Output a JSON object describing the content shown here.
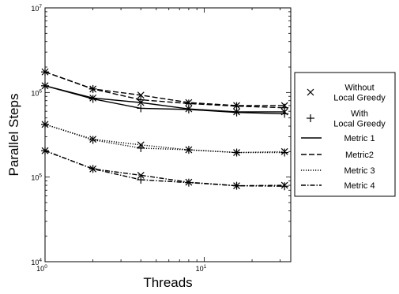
{
  "chart_data": {
    "type": "line",
    "xlabel": "Threads",
    "ylabel": "Parallel Steps",
    "x_scale": "log",
    "y_scale": "log",
    "xlim": [
      1,
      35
    ],
    "ylim": [
      10000,
      10000000
    ],
    "x_ticks": [
      {
        "value": 1,
        "label": "10",
        "exp": "0"
      },
      {
        "value": 10,
        "label": "10",
        "exp": "1"
      }
    ],
    "y_ticks": [
      {
        "value": 10000,
        "label": "10",
        "exp": "4"
      },
      {
        "value": 100000,
        "label": "10",
        "exp": "5"
      },
      {
        "value": 1000000,
        "label": "10",
        "exp": "6"
      },
      {
        "value": 10000000,
        "label": "10",
        "exp": "7"
      }
    ],
    "grid": false,
    "legend_position": "right",
    "x": [
      1,
      2,
      4,
      8,
      16,
      32
    ],
    "series": [
      {
        "name": "Metric 1",
        "dash": "solid",
        "variant": "without",
        "values": [
          1200000,
          860000,
          760000,
          640000,
          590000,
          590000
        ]
      },
      {
        "name": "Metric 1",
        "dash": "solid",
        "variant": "with",
        "values": [
          1200000,
          840000,
          650000,
          630000,
          580000,
          560000
        ]
      },
      {
        "name": "Metric2",
        "dash": "dashed",
        "variant": "without",
        "values": [
          1750000,
          1100000,
          930000,
          760000,
          700000,
          700000
        ]
      },
      {
        "name": "Metric2",
        "dash": "dashed",
        "variant": "with",
        "values": [
          1750000,
          1100000,
          820000,
          740000,
          690000,
          660000
        ]
      },
      {
        "name": "Metric 3",
        "dash": "dotted",
        "variant": "without",
        "values": [
          420000,
          280000,
          240000,
          210000,
          195000,
          200000
        ]
      },
      {
        "name": "Metric 3",
        "dash": "dotted",
        "variant": "with",
        "values": [
          420000,
          275000,
          220000,
          210000,
          195000,
          195000
        ]
      },
      {
        "name": "Metric 4",
        "dash": "dashdot",
        "variant": "without",
        "values": [
          205000,
          125000,
          105000,
          87000,
          79000,
          80000
        ]
      },
      {
        "name": "Metric 4",
        "dash": "dashdot",
        "variant": "with",
        "values": [
          205000,
          125000,
          93000,
          86000,
          79000,
          78000
        ]
      }
    ],
    "legend": [
      {
        "kind": "marker",
        "marker": "x",
        "label_lines": [
          "Without",
          "Local Greedy"
        ]
      },
      {
        "kind": "marker",
        "marker": "+",
        "label_lines": [
          "With",
          "Local Greedy"
        ]
      },
      {
        "kind": "line",
        "dash": "solid",
        "label_lines": [
          "Metric 1"
        ]
      },
      {
        "kind": "line",
        "dash": "dashed",
        "label_lines": [
          "Metric2"
        ]
      },
      {
        "kind": "line",
        "dash": "dotted",
        "label_lines": [
          "Metric 3"
        ]
      },
      {
        "kind": "line",
        "dash": "dashdot",
        "label_lines": [
          "Metric 4"
        ]
      }
    ]
  }
}
